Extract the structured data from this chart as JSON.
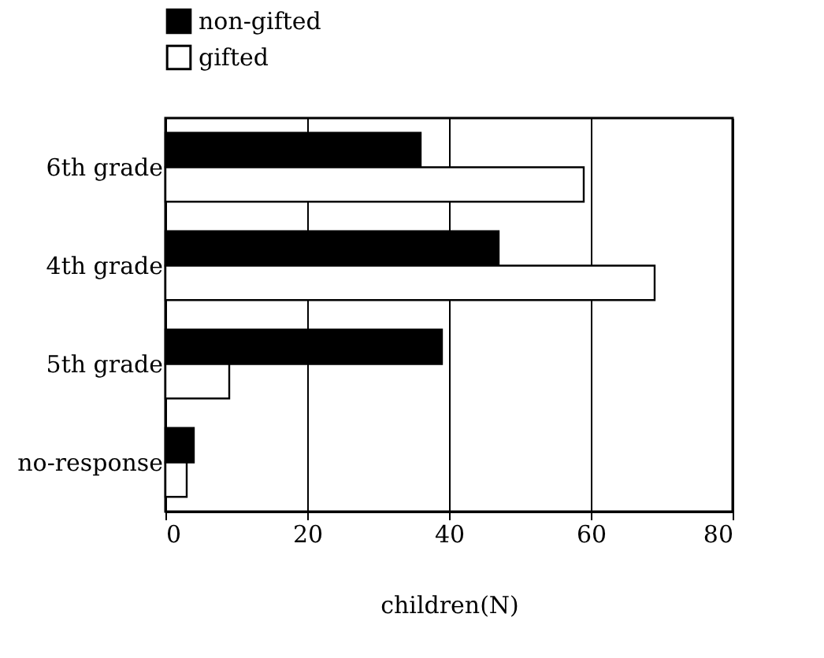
{
  "chart_data": {
    "type": "bar",
    "orientation": "horizontal",
    "xlabel": "children(N)",
    "categories": [
      "6th grade",
      "4th grade",
      "5th grade",
      "no-response"
    ],
    "series": [
      {
        "name": "non-gifted",
        "color": "#000000",
        "values": [
          36,
          47,
          39,
          4
        ]
      },
      {
        "name": "gifted",
        "color": "#ffffff",
        "values": [
          59,
          69,
          9,
          3
        ]
      }
    ],
    "xlim": [
      0,
      80
    ],
    "xticks": [
      0,
      20,
      40,
      60,
      80
    ],
    "grid": "x",
    "legend": "top left"
  }
}
